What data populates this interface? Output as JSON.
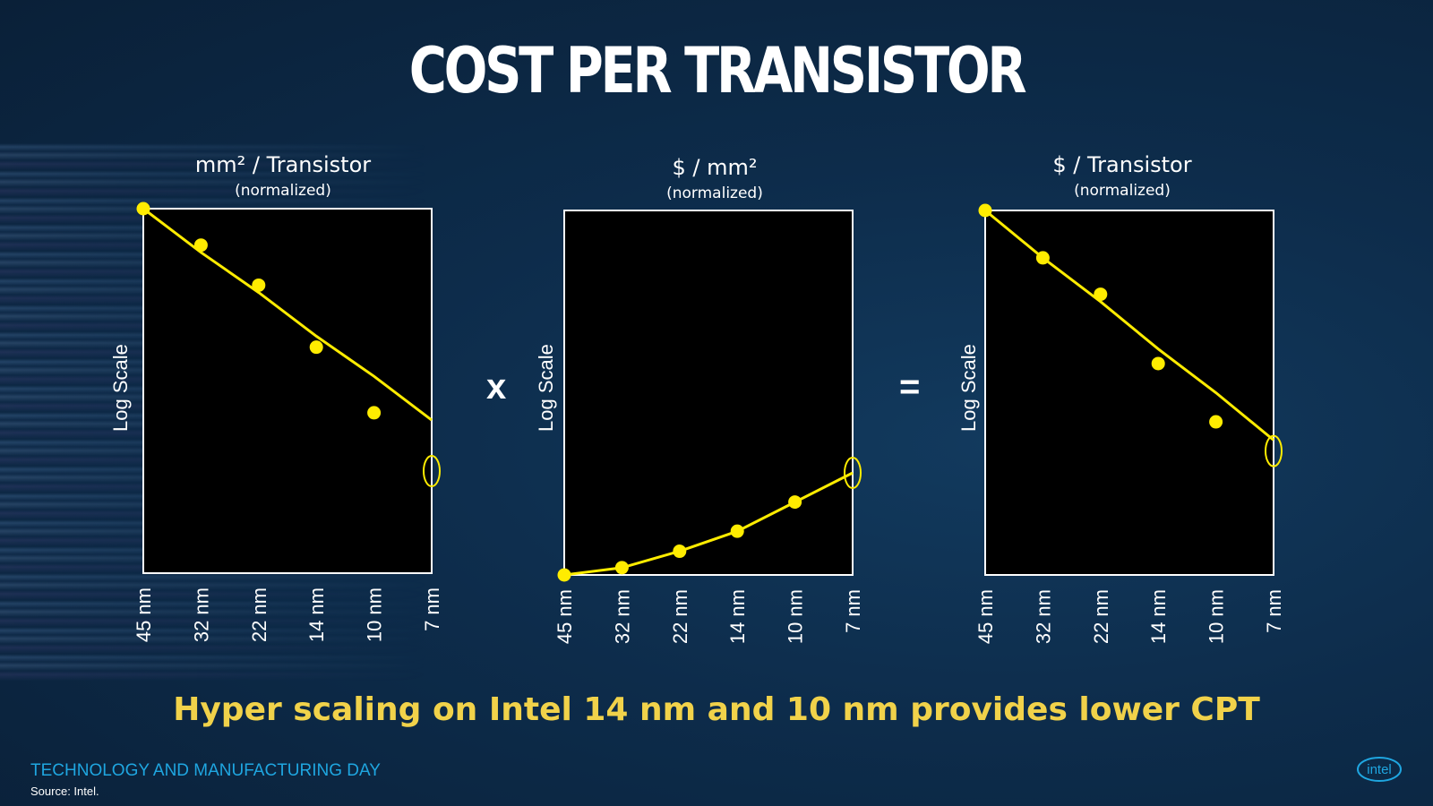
{
  "slide": {
    "title": "COST PER TRANSISTOR",
    "tagline": "Hyper scaling on Intel 14 nm and 10 nm provides lower CPT",
    "footer_event": "TECHNOLOGY AND MANUFACTURING DAY",
    "footer_source": "Source: Intel.",
    "logo_text": "intel",
    "operator_multiply": "x",
    "operator_equals": "="
  },
  "colors": {
    "line": "#ffec00",
    "plot_bg": "#000000",
    "tagline": "#f1d24a",
    "footer_event": "#1fa6e0"
  },
  "chart_data": [
    {
      "type": "line",
      "title": "mm² / Transistor",
      "subtitle": "(normalized)",
      "ylabel": "Log Scale",
      "y_scale": "log",
      "categories": [
        "45 nm",
        "32 nm",
        "22 nm",
        "14 nm",
        "10 nm",
        "7 nm"
      ],
      "trend": [
        1.0,
        0.88,
        0.77,
        0.65,
        0.54,
        0.42
      ],
      "points": [
        1.0,
        0.9,
        0.79,
        0.62,
        0.44
      ],
      "highlight": {
        "category": "7 nm",
        "value": 0.28,
        "shape": "ellipse"
      },
      "ylim": [
        0,
        1
      ]
    },
    {
      "type": "line",
      "title": "$ / mm²",
      "subtitle": "(normalized)",
      "ylabel": "Log Scale",
      "y_scale": "log",
      "categories": [
        "45 nm",
        "32 nm",
        "22 nm",
        "14 nm",
        "10 nm",
        "7 nm"
      ],
      "trend": [
        0.0,
        0.02,
        0.065,
        0.12,
        0.2,
        0.28
      ],
      "points": [
        0.0,
        0.02,
        0.065,
        0.12,
        0.2
      ],
      "highlight": {
        "category": "7 nm",
        "value": 0.28,
        "shape": "ellipse"
      },
      "ylim": [
        0,
        1
      ]
    },
    {
      "type": "line",
      "title": "$ / Transistor",
      "subtitle": "(normalized)",
      "ylabel": "Log Scale",
      "y_scale": "log",
      "categories": [
        "45 nm",
        "32 nm",
        "22 nm",
        "14 nm",
        "10 nm",
        "7 nm"
      ],
      "trend": [
        1.0,
        0.87,
        0.75,
        0.62,
        0.5,
        0.37
      ],
      "points": [
        1.0,
        0.87,
        0.77,
        0.58,
        0.42
      ],
      "highlight": {
        "category": "7 nm",
        "value": 0.34,
        "shape": "ellipse"
      },
      "ylim": [
        0,
        1
      ]
    }
  ]
}
